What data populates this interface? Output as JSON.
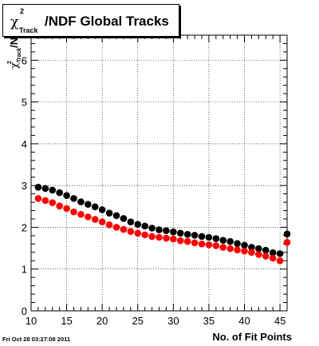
{
  "title": {
    "symbol": "χ",
    "superscript": "2",
    "subscript": "Track",
    "main": "/NDF  Global Tracks"
  },
  "footer": {
    "date": "Fri Oct 28 03:27:08 2011"
  },
  "chart_data": {
    "type": "scatter",
    "title": "χ²_Track/NDF  Global Tracks",
    "xlabel": "No. of Fit Points",
    "ylabel": "χ²_Track/NDF",
    "xlim": [
      10,
      46
    ],
    "ylim": [
      0,
      6.6
    ],
    "xticks": [
      10,
      15,
      20,
      25,
      30,
      35,
      40,
      45
    ],
    "yticks": [
      0,
      1,
      2,
      3,
      4,
      5,
      6
    ],
    "grid": true,
    "x": [
      11,
      12,
      13,
      14,
      15,
      16,
      17,
      18,
      19,
      20,
      21,
      22,
      23,
      24,
      25,
      26,
      27,
      28,
      29,
      30,
      31,
      32,
      33,
      34,
      35,
      36,
      37,
      38,
      39,
      40,
      41,
      42,
      43,
      44,
      45,
      46
    ],
    "series": [
      {
        "color": "#000000",
        "values": [
          2.96,
          2.93,
          2.89,
          2.83,
          2.76,
          2.69,
          2.61,
          2.55,
          2.49,
          2.42,
          2.34,
          2.28,
          2.21,
          2.13,
          2.07,
          2.03,
          1.98,
          1.94,
          1.92,
          1.89,
          1.86,
          1.83,
          1.81,
          1.78,
          1.76,
          1.73,
          1.69,
          1.66,
          1.61,
          1.57,
          1.52,
          1.49,
          1.45,
          1.39,
          1.37,
          1.84
        ]
      },
      {
        "color": "#ff0000",
        "values": [
          2.69,
          2.64,
          2.59,
          2.51,
          2.45,
          2.37,
          2.31,
          2.25,
          2.19,
          2.13,
          2.06,
          2.0,
          1.95,
          1.9,
          1.86,
          1.82,
          1.78,
          1.76,
          1.74,
          1.72,
          1.68,
          1.66,
          1.63,
          1.6,
          1.58,
          1.56,
          1.52,
          1.49,
          1.46,
          1.43,
          1.4,
          1.35,
          1.31,
          1.26,
          1.2,
          1.64
        ]
      }
    ]
  }
}
